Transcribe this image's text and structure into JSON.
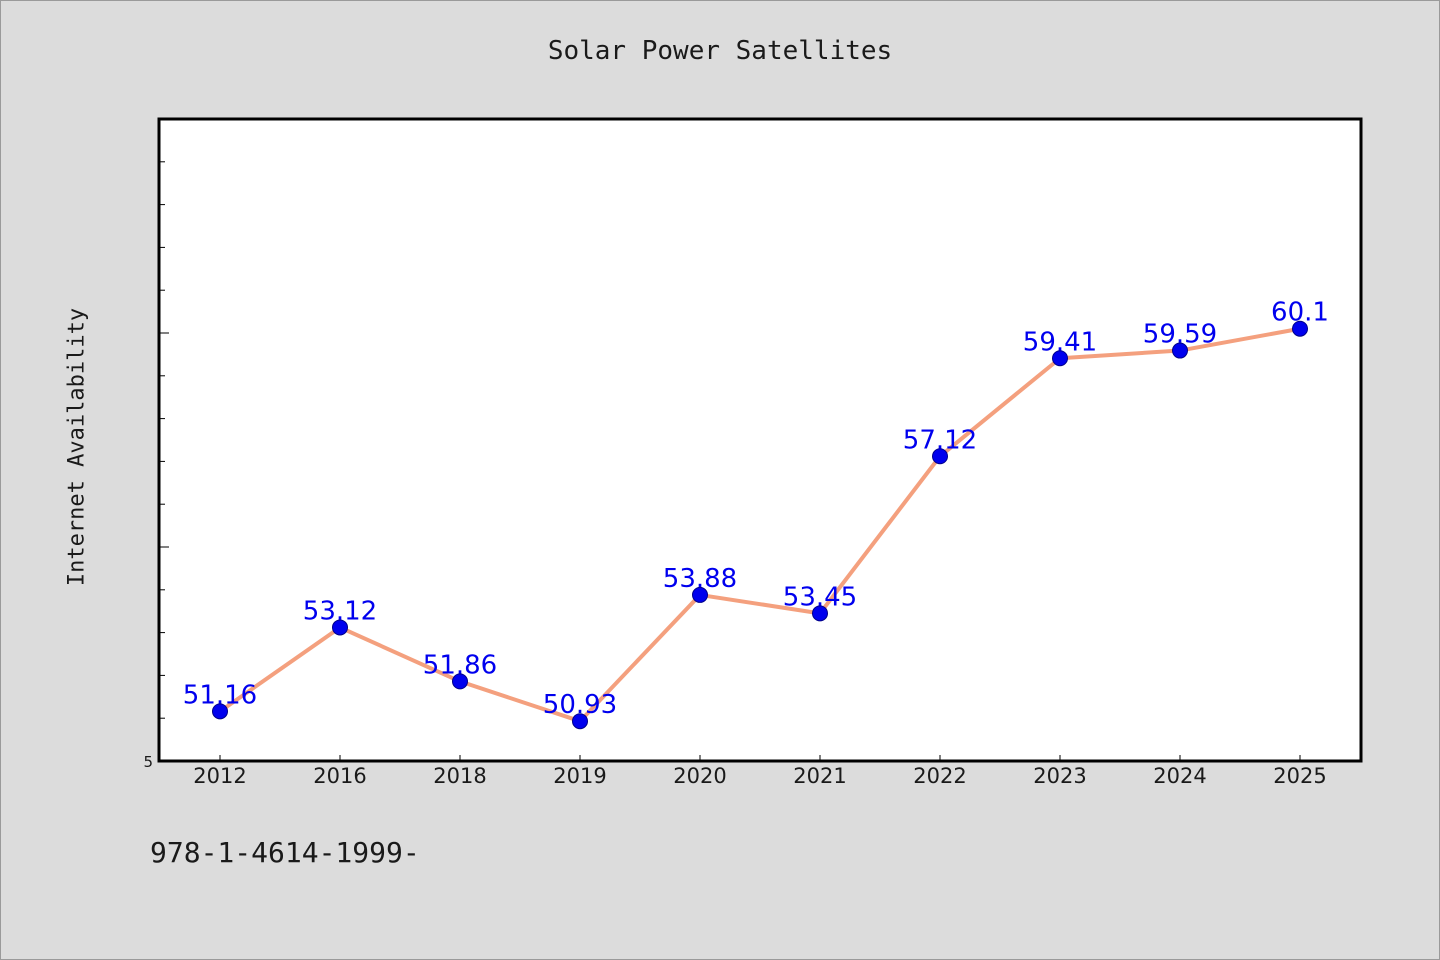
{
  "chart_data": {
    "type": "line",
    "title": "Solar Power Satellites",
    "ylabel": "Internet Availability",
    "xlabel": "",
    "categories": [
      "2012",
      "2016",
      "2018",
      "2019",
      "2020",
      "2021",
      "2022",
      "2023",
      "2024",
      "2025"
    ],
    "series": [
      {
        "values": [
          51.16,
          53.12,
          51.86,
          50.93,
          53.88,
          53.45,
          57.12,
          59.41,
          59.59,
          60.1
        ],
        "labels": [
          "51.16",
          "53.12",
          "51.86",
          "50.93",
          "53.88",
          "53.45",
          "57.12",
          "59.41",
          "59.59",
          "60.1"
        ]
      }
    ],
    "y_tick_labels": [
      "5"
    ],
    "ylim": [
      50,
      65
    ],
    "grid": false,
    "colors": {
      "line": "#f4a07e",
      "marker": "#0000ee",
      "data_label": "#0000ee",
      "plot_background": "#ffffff",
      "figure_background": "#dcdcdc"
    }
  },
  "footer": {
    "code": "978-1-4614-1999-"
  }
}
